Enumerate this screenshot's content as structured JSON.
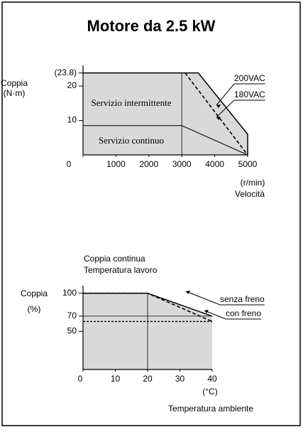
{
  "title": "Motore da 2.5 kW",
  "chart_data": [
    {
      "type": "line",
      "ylabel": [
        "Coppia",
        "(N·m)"
      ],
      "xunit": "(r/min)",
      "xlabel": "Velocità",
      "regions": [
        "Servizio intermittente",
        "Servizio continuo"
      ],
      "xlim": [
        0,
        5000
      ],
      "ylim": [
        0,
        26
      ],
      "xticks": [
        0,
        1000,
        2000,
        3000,
        4000,
        5000
      ],
      "yticks": [
        10,
        20,
        {
          "value": 23.8,
          "label": "(23.8)"
        }
      ],
      "series": [
        {
          "name": "200VAC",
          "color": "#000000",
          "dashed": false,
          "x": [
            0,
            3500,
            5000,
            5000
          ],
          "values": [
            23.8,
            23.8,
            6,
            0
          ]
        },
        {
          "name": "180VAC",
          "color": "#000000",
          "dashed": true,
          "x": [
            3100,
            5000
          ],
          "values": [
            23.8,
            0
          ]
        }
      ],
      "continuous": {
        "x": [
          0,
          3000,
          5000
        ],
        "values": [
          8.5,
          8.5,
          0
        ]
      },
      "divider": 3000
    },
    {
      "type": "line",
      "caption": [
        "Coppia continua",
        "Temperatura lavoro"
      ],
      "ylabel": [
        "Coppia",
        "(%)"
      ],
      "xunit": "(°C)",
      "xlabel": "Temperatura ambiente",
      "xlim": [
        0,
        40
      ],
      "ylim": [
        0,
        110
      ],
      "xticks": [
        0,
        10,
        20,
        30,
        40
      ],
      "yticks": [
        50,
        70,
        100
      ],
      "series": [
        {
          "name": "senza freno",
          "color": "#000000",
          "dashed": false,
          "x": [
            0,
            20,
            40
          ],
          "values": [
            100,
            100,
            70
          ]
        },
        {
          "name": "con freno",
          "color": "#000000",
          "dashed": true,
          "x": [
            0,
            20,
            40
          ],
          "values": [
            100,
            100,
            63
          ]
        }
      ],
      "divider": 20
    }
  ]
}
